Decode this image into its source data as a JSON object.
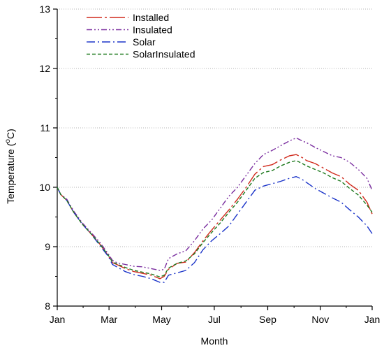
{
  "chart_data": {
    "type": "line",
    "title": "",
    "xlabel": "Month",
    "ylabel": "Temperature (°C)",
    "ylabel_parts": {
      "main": "Temperature (",
      "sup": "o",
      "unit": "C)"
    },
    "x_unit": "day of year",
    "xlim": [
      1,
      366
    ],
    "ylim": [
      8,
      13
    ],
    "x_ticks": [
      {
        "label": "Jan",
        "value": 1
      },
      {
        "label": "Mar",
        "value": 61
      },
      {
        "label": "May",
        "value": 122
      },
      {
        "label": "Jul",
        "value": 183
      },
      {
        "label": "Sep",
        "value": 245
      },
      {
        "label": "Nov",
        "value": 306
      },
      {
        "label": "Jan",
        "value": 366
      }
    ],
    "y_ticks": [
      {
        "label": "8",
        "value": 8
      },
      {
        "label": "9",
        "value": 9
      },
      {
        "label": "10",
        "value": 10
      },
      {
        "label": "11",
        "value": 11
      },
      {
        "label": "12",
        "value": 12
      },
      {
        "label": "13",
        "value": 13
      }
    ],
    "grid": "horizontal dotted",
    "legend_position": "top-left",
    "x": [
      1,
      5,
      12,
      20,
      30,
      40,
      50,
      60,
      65,
      70,
      80,
      90,
      100,
      110,
      120,
      125,
      130,
      140,
      150,
      160,
      170,
      180,
      190,
      200,
      210,
      220,
      230,
      240,
      250,
      260,
      270,
      278,
      285,
      290,
      300,
      310,
      320,
      330,
      340,
      350,
      360,
      366
    ],
    "series": [
      {
        "name": "Installed",
        "color": "#d02a1c",
        "dash": "22 4 3 4",
        "values": [
          10.0,
          9.88,
          9.78,
          9.58,
          9.38,
          9.22,
          9.05,
          8.85,
          8.73,
          8.7,
          8.63,
          8.58,
          8.55,
          8.52,
          8.46,
          8.5,
          8.62,
          8.72,
          8.74,
          8.9,
          9.1,
          9.28,
          9.45,
          9.62,
          9.8,
          10.0,
          10.22,
          10.35,
          10.38,
          10.46,
          10.53,
          10.55,
          10.5,
          10.45,
          10.4,
          10.32,
          10.24,
          10.18,
          10.05,
          9.95,
          9.75,
          9.55
        ]
      },
      {
        "name": "Insulated",
        "color": "#7b2fa0",
        "dash": "8 3 2 3 2 3",
        "values": [
          10.0,
          9.88,
          9.8,
          9.6,
          9.4,
          9.24,
          9.08,
          8.88,
          8.77,
          8.73,
          8.7,
          8.67,
          8.66,
          8.63,
          8.6,
          8.62,
          8.8,
          8.88,
          8.93,
          9.1,
          9.3,
          9.45,
          9.65,
          9.85,
          10.0,
          10.2,
          10.4,
          10.55,
          10.62,
          10.7,
          10.78,
          10.83,
          10.78,
          10.75,
          10.67,
          10.6,
          10.53,
          10.5,
          10.42,
          10.3,
          10.15,
          9.95
        ]
      },
      {
        "name": "Solar",
        "color": "#1c35c9",
        "dash": "12 4 2 4",
        "values": [
          10.0,
          9.88,
          9.78,
          9.58,
          9.38,
          9.22,
          9.03,
          8.84,
          8.7,
          8.66,
          8.58,
          8.53,
          8.5,
          8.46,
          8.4,
          8.4,
          8.52,
          8.56,
          8.6,
          8.73,
          8.95,
          9.1,
          9.22,
          9.35,
          9.55,
          9.75,
          9.95,
          10.02,
          10.06,
          10.1,
          10.15,
          10.18,
          10.13,
          10.08,
          9.98,
          9.9,
          9.82,
          9.75,
          9.62,
          9.5,
          9.35,
          9.22
        ]
      },
      {
        "name": "SolarInsulated",
        "color": "#1f7a1f",
        "dash": "5 3",
        "values": [
          10.0,
          9.88,
          9.78,
          9.58,
          9.38,
          9.22,
          9.05,
          8.86,
          8.74,
          8.71,
          8.65,
          8.6,
          8.57,
          8.54,
          8.49,
          8.52,
          8.64,
          8.72,
          8.76,
          8.88,
          9.07,
          9.24,
          9.4,
          9.58,
          9.75,
          9.95,
          10.15,
          10.25,
          10.28,
          10.36,
          10.42,
          10.45,
          10.4,
          10.36,
          10.3,
          10.24,
          10.16,
          10.1,
          9.98,
          9.87,
          9.7,
          9.58
        ]
      }
    ]
  }
}
